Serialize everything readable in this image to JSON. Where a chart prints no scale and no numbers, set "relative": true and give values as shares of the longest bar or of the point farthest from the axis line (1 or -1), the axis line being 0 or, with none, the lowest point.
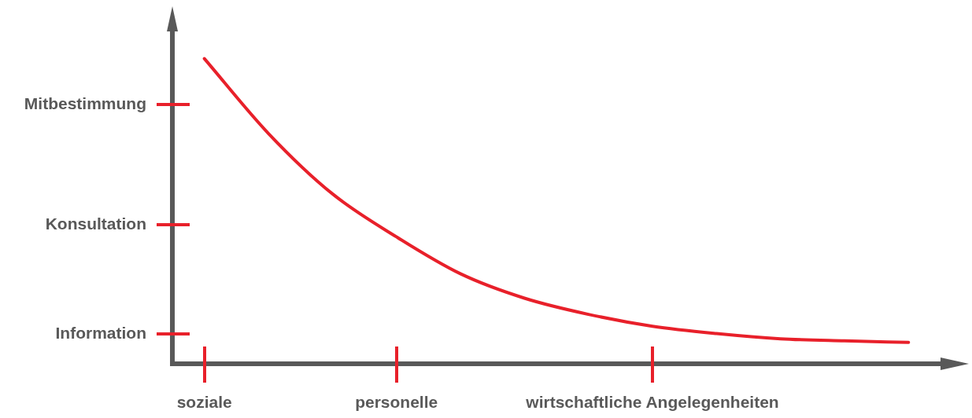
{
  "chart_data": {
    "type": "line",
    "relative": true,
    "categories": [
      "soziale",
      null,
      null,
      "personelle",
      null,
      null,
      null,
      "wirtschaftliche Angelegenheiten",
      null,
      null,
      null,
      null
    ],
    "series": [
      {
        "color": "#e8202a",
        "values": [
          1,
          0.755,
          0.557,
          0.416,
          0.295,
          0.215,
          0.162,
          0.123,
          0.099,
          0.082,
          0.075,
          0.07
        ]
      }
    ],
    "annotations": [
      "Mitbestimmung",
      "Konsultation",
      "Information"
    ],
    "grid": false,
    "legend": false,
    "marker": "none"
  }
}
